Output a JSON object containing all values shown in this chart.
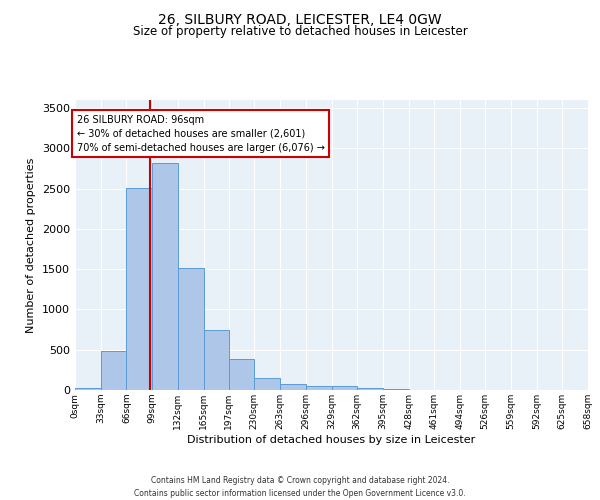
{
  "title": "26, SILBURY ROAD, LEICESTER, LE4 0GW",
  "subtitle": "Size of property relative to detached houses in Leicester",
  "xlabel": "Distribution of detached houses by size in Leicester",
  "ylabel": "Number of detached properties",
  "bar_values": [
    20,
    480,
    2510,
    2820,
    1520,
    750,
    390,
    145,
    75,
    55,
    55,
    30,
    10,
    0,
    0,
    0,
    0,
    0,
    0,
    0
  ],
  "bar_edges": [
    0,
    33,
    66,
    99,
    132,
    165,
    197,
    230,
    263,
    296,
    329,
    362,
    395,
    428,
    461,
    494,
    526,
    559,
    592,
    625,
    658
  ],
  "tick_labels": [
    "0sqm",
    "33sqm",
    "66sqm",
    "99sqm",
    "132sqm",
    "165sqm",
    "197sqm",
    "230sqm",
    "263sqm",
    "296sqm",
    "329sqm",
    "362sqm",
    "395sqm",
    "428sqm",
    "461sqm",
    "494sqm",
    "526sqm",
    "559sqm",
    "592sqm",
    "625sqm",
    "658sqm"
  ],
  "bar_color": "#aec6e8",
  "bar_edge_color": "#5b9bd5",
  "vline_x": 96,
  "vline_color": "#cc0000",
  "annotation_text": "26 SILBURY ROAD: 96sqm\n← 30% of detached houses are smaller (2,601)\n70% of semi-detached houses are larger (6,076) →",
  "annotation_box_color": "#ffffff",
  "annotation_box_edge": "#cc0000",
  "ylim": [
    0,
    3600
  ],
  "yticks": [
    0,
    500,
    1000,
    1500,
    2000,
    2500,
    3000,
    3500
  ],
  "xlim": [
    0,
    658
  ],
  "background_color": "#e8f0f8",
  "footer_line1": "Contains HM Land Registry data © Crown copyright and database right 2024.",
  "footer_line2": "Contains public sector information licensed under the Open Government Licence v3.0."
}
